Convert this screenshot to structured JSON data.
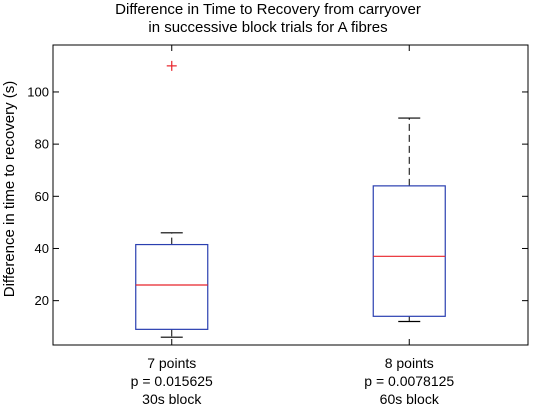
{
  "chart_data": {
    "type": "boxplot",
    "title": [
      "Difference in Time to Recovery from carryover",
      "in successive block trials for A fibres"
    ],
    "xlabel": "",
    "ylabel": "Difference in time to recovery (s)",
    "ylim": [
      3,
      118
    ],
    "yticks": [
      20,
      40,
      60,
      80,
      100
    ],
    "ytick_labels": [
      "20",
      "40",
      "60",
      "80",
      "100"
    ],
    "grid": false,
    "categories": [
      [
        "7 points",
        "p = 0.015625",
        "30s block"
      ],
      [
        "8 points",
        "p = 0.0078125",
        "60s block"
      ]
    ],
    "boxes": [
      {
        "whisker_low": 6,
        "q1": 9,
        "median": 26,
        "q3": 41.5,
        "whisker_high": 46,
        "outliers": [
          110
        ]
      },
      {
        "whisker_low": 12,
        "q1": 14,
        "median": 37,
        "q3": 64,
        "whisker_high": 90,
        "outliers": []
      }
    ],
    "colors": {
      "box": "#2a3fb0",
      "median": "#e8232a",
      "whisker": "#000000",
      "outlier": "#e8232a",
      "axis": "#000000"
    }
  }
}
